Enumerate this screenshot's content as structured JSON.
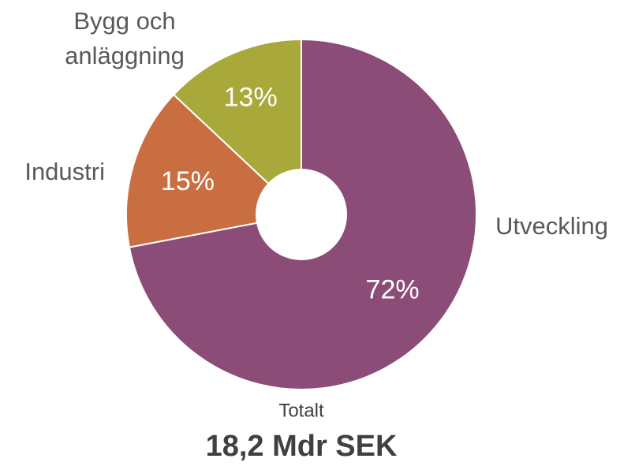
{
  "chart_data": {
    "type": "donut",
    "categories": [
      "Utveckling",
      "Industri",
      "Bygg och anläggning"
    ],
    "values": [
      72,
      15,
      13
    ],
    "value_labels": [
      "72%",
      "15%",
      "13%"
    ],
    "colors": [
      "#8b4c78",
      "#c96e40",
      "#a9a83a"
    ],
    "annotations": [
      "Totalt",
      "18,2 Mdr SEK"
    ]
  }
}
